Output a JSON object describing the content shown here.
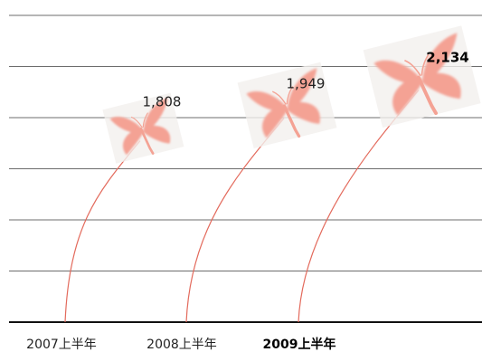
{
  "chart_data": {
    "type": "line",
    "title": "",
    "xlabel": "",
    "ylabel": "",
    "categories": [
      "2007上半年",
      "2008上半年",
      "2009上半年"
    ],
    "values": [
      1808,
      1949,
      2134
    ],
    "value_labels": [
      "1,808",
      "1,949",
      "2,134"
    ],
    "highlight_index": 2,
    "ylim": [
      0,
      2400
    ],
    "gridlines": 6,
    "grid": true,
    "legend": "none",
    "colors": {
      "gridline": "#6d6d6d",
      "baseline": "#111111",
      "trail": "#e36a5c",
      "butterfly": "#f4a294",
      "butterfly_bg": "#f3f0ee"
    },
    "marker_icon": "butterfly-icon"
  }
}
